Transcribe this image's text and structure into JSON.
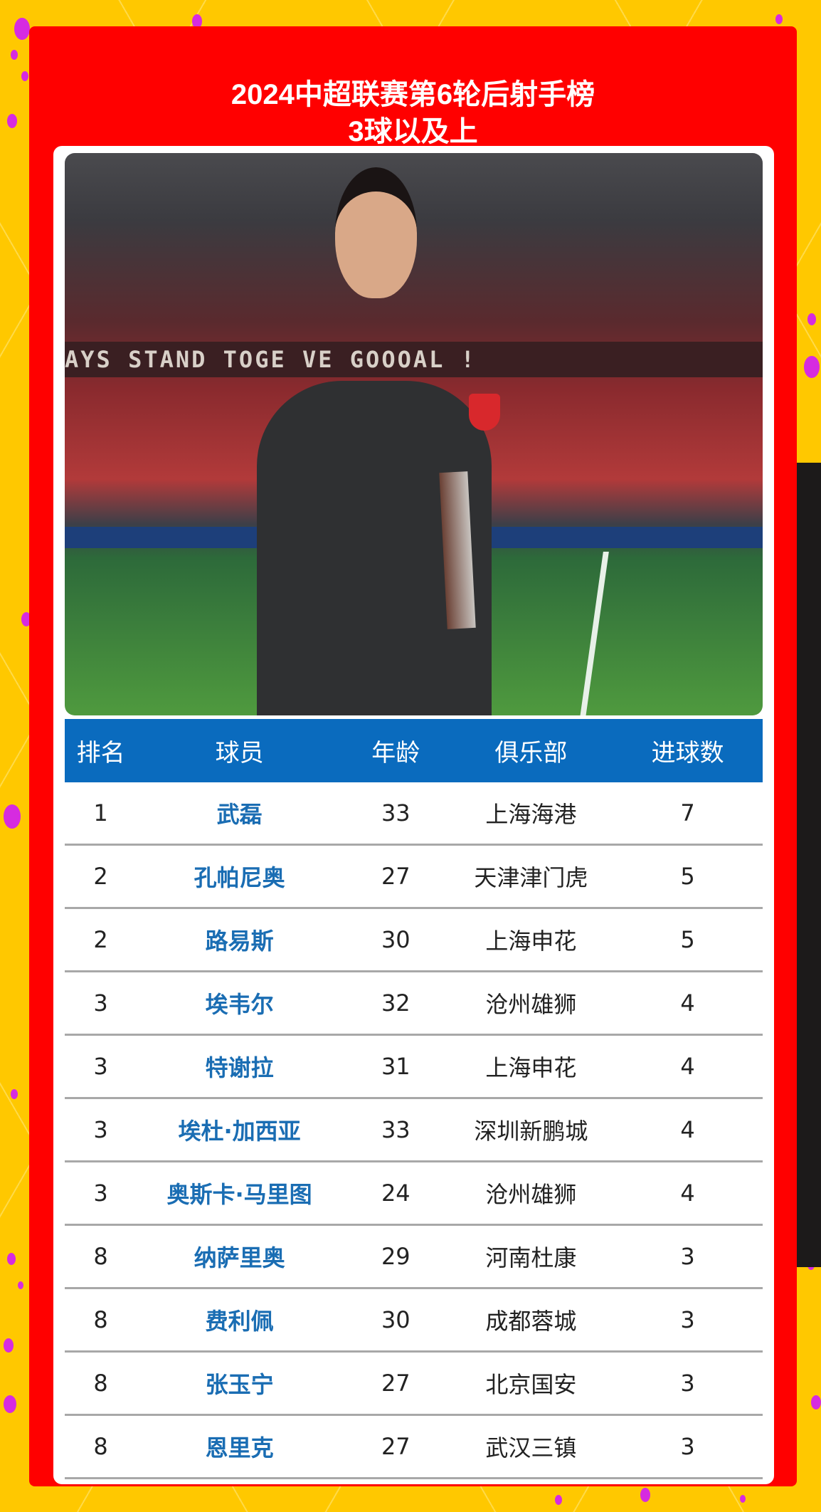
{
  "title": {
    "line1": "2024中超联赛第6轮后射手榜",
    "line2": "3球以及上"
  },
  "colors": {
    "background": "#FFC800",
    "panel": "#FF0000",
    "header": "#0A6BBE",
    "player_name": "#1A6DB3",
    "dots": "#D62BE0"
  },
  "photo": {
    "banner_text": "AYS STAND TOGE          VE GOOOAL !"
  },
  "table": {
    "headers": [
      "排名",
      "球员",
      "年龄",
      "俱乐部",
      "进球数"
    ],
    "rows": [
      {
        "rank": "1",
        "player": "武磊",
        "age": "33",
        "club": "上海海港",
        "goals": "7"
      },
      {
        "rank": "2",
        "player": "孔帕尼奥",
        "age": "27",
        "club": "天津津门虎",
        "goals": "5"
      },
      {
        "rank": "2",
        "player": "路易斯",
        "age": "30",
        "club": "上海申花",
        "goals": "5"
      },
      {
        "rank": "3",
        "player": "埃韦尔",
        "age": "32",
        "club": "沧州雄狮",
        "goals": "4"
      },
      {
        "rank": "3",
        "player": "特谢拉",
        "age": "31",
        "club": "上海申花",
        "goals": "4"
      },
      {
        "rank": "3",
        "player": "埃杜·加西亚",
        "age": "33",
        "club": "深圳新鹏城",
        "goals": "4"
      },
      {
        "rank": "3",
        "player": "奥斯卡·马里图",
        "age": "24",
        "club": "沧州雄狮",
        "goals": "4"
      },
      {
        "rank": "8",
        "player": "纳萨里奥",
        "age": "29",
        "club": "河南杜康",
        "goals": "3"
      },
      {
        "rank": "8",
        "player": "费利佩",
        "age": "30",
        "club": "成都蓉城",
        "goals": "3"
      },
      {
        "rank": "8",
        "player": "张玉宁",
        "age": "27",
        "club": "北京国安",
        "goals": "3"
      },
      {
        "rank": "8",
        "player": "恩里克",
        "age": "27",
        "club": "武汉三镇",
        "goals": "3"
      }
    ]
  }
}
